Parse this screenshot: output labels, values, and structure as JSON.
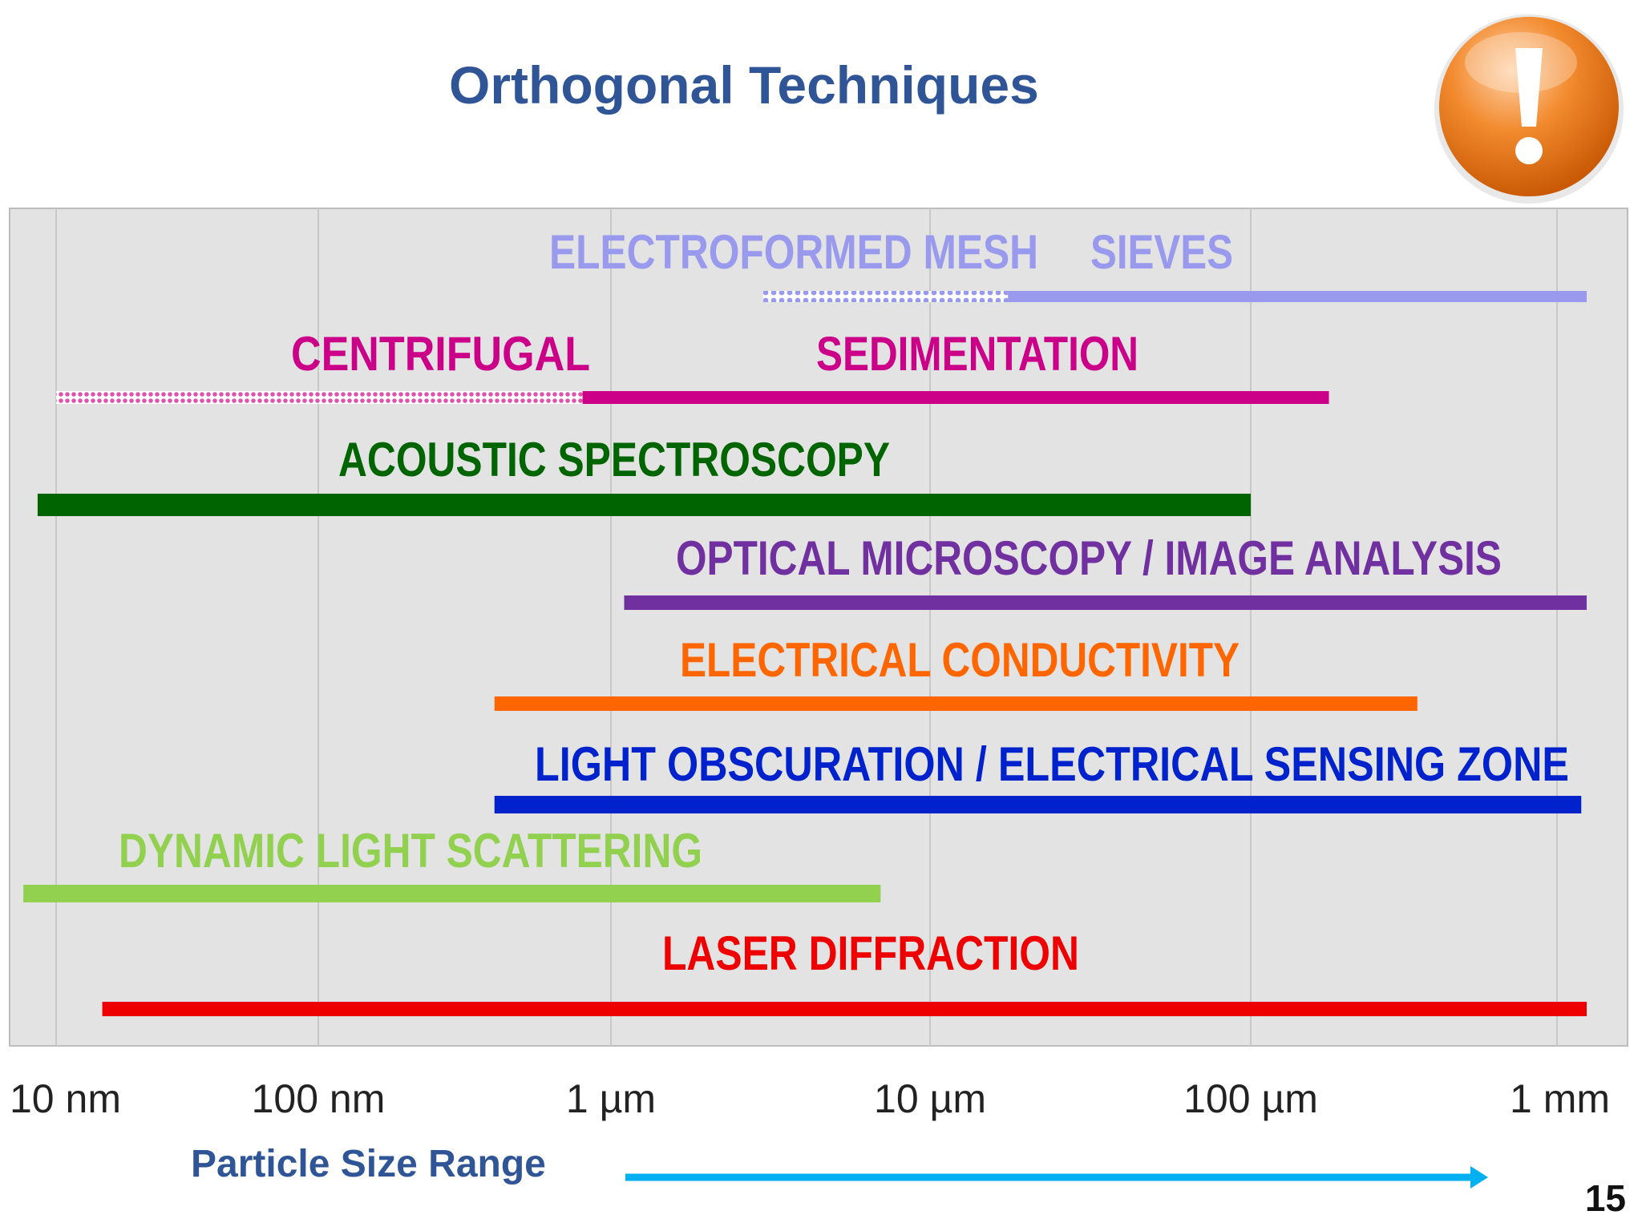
{
  "slide": {
    "title": "Orthogonal Techniques",
    "page_number": "15",
    "axis_caption": "Particle Size Range",
    "icon": "exclamation-icon"
  },
  "colors": {
    "title": "#2f5597",
    "plot_background": "#e3e3e3",
    "gridline": "#c8c8c8",
    "badge": "#f07a1e",
    "arrow": "#00b0f0"
  },
  "chart_data": {
    "type": "bar",
    "orientation": "horizontal-range",
    "x_scale": "log",
    "x_unit": "m",
    "xlim": [
      7.5e-09,
      0.00125
    ],
    "x_ticks": [
      {
        "value": 1e-08,
        "label": "10 nm"
      },
      {
        "value": 1e-07,
        "label": "100 nm"
      },
      {
        "value": 1e-06,
        "label": "1 µm"
      },
      {
        "value": 1e-05,
        "label": "10 µm"
      },
      {
        "value": 0.0001,
        "label": "100 µm"
      },
      {
        "value": 0.001,
        "label": "1 mm"
      }
    ],
    "grid": true,
    "techniques": [
      {
        "label": "ELECTROFORMED MESH",
        "label2": "SIEVES",
        "color": "#9999ee",
        "dashed_range": [
          3e-06,
          1.75e-05
        ],
        "range": [
          1.75e-05,
          0.00125
        ]
      },
      {
        "label": "CENTRIFUGAL",
        "label2": "SEDIMENTATION",
        "color": "#cc0088",
        "dashed_range": [
          1e-08,
          8e-07
        ],
        "range": [
          8e-07,
          0.00018
        ]
      },
      {
        "label": "ACOUSTIC SPECTROSCOPY",
        "color": "#006400",
        "range": [
          8.5e-09,
          0.0001
        ]
      },
      {
        "label": "OPTICAL MICROSCOPY / IMAGE ANALYSIS",
        "color": "#7030a0",
        "range": [
          1.1e-06,
          0.00125
        ]
      },
      {
        "label": "ELECTRICAL CONDUCTIVITY",
        "color": "#ff6600",
        "range": [
          4e-07,
          0.00035
        ]
      },
      {
        "label": "LIGHT OBSCURATION /  ELECTRICAL SENSING ZONE",
        "color": "#0022cc",
        "range": [
          4e-07,
          0.0012
        ]
      },
      {
        "label": "DYNAMIC LIGHT SCATTERING",
        "color": "#92d050",
        "range": [
          7.5e-09,
          7e-06
        ]
      },
      {
        "label": "LASER DIFFRACTION",
        "color": "#ee0000",
        "range": [
          1.5e-08,
          0.00125
        ]
      }
    ]
  }
}
